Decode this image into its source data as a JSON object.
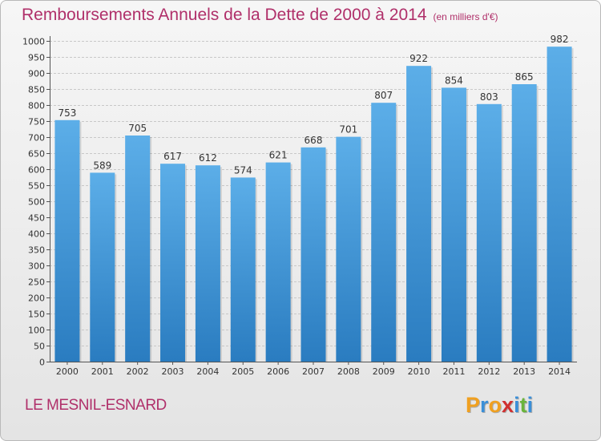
{
  "chart_data": {
    "type": "bar",
    "title": "Remboursements Annuels de la Dette de 2000 à 2014",
    "subtitle": "(en milliers d'€)",
    "categories": [
      "2000",
      "2001",
      "2002",
      "2003",
      "2004",
      "2005",
      "2006",
      "2007",
      "2008",
      "2009",
      "2010",
      "2011",
      "2012",
      "2013",
      "2014"
    ],
    "values": [
      753,
      589,
      705,
      617,
      612,
      574,
      621,
      668,
      701,
      807,
      922,
      854,
      803,
      865,
      982
    ],
    "ylim": [
      0,
      1000
    ],
    "yticks": [
      0,
      50,
      100,
      150,
      200,
      250,
      300,
      350,
      400,
      450,
      500,
      550,
      600,
      650,
      700,
      750,
      800,
      850,
      900,
      950,
      1000
    ],
    "xlabel": "",
    "ylabel": "",
    "grid": true,
    "colors": {
      "bar_top": "#5caee8",
      "bar_bottom": "#2a7cc0",
      "title": "#b0306a",
      "grid": "#c8c8c8"
    }
  },
  "footer": {
    "commune": "LE MESNIL-ESNARD",
    "brand_letters": [
      "P",
      "r",
      "o",
      "x",
      "i",
      "t",
      "i"
    ],
    "brand_colors": [
      "#f0a020",
      "#3a8fd8",
      "#f0a020",
      "#d03030",
      "#3a8fd8",
      "#6ab43c",
      "#3a8fd8"
    ]
  }
}
